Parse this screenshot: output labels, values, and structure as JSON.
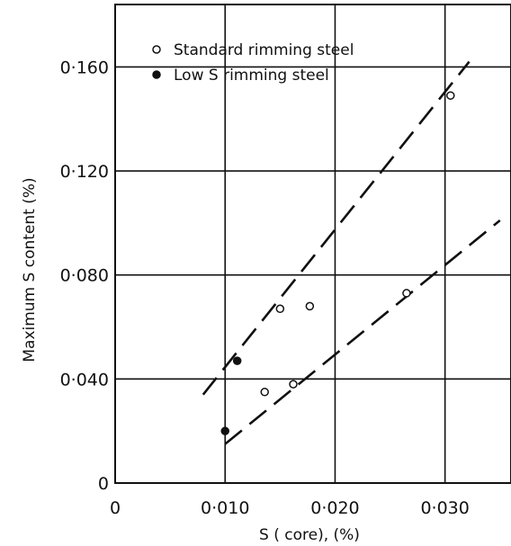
{
  "chart_data": {
    "type": "scatter",
    "title": "",
    "xlabel": "S ( core), (%)",
    "ylabel": "Maximum  S  content   (%)",
    "xlim": [
      0,
      0.036
    ],
    "ylim": [
      0,
      0.184
    ],
    "x_ticks": [
      {
        "value": 0,
        "label": "0"
      },
      {
        "value": 0.01,
        "label": "0·010"
      },
      {
        "value": 0.02,
        "label": "0·020"
      },
      {
        "value": 0.03,
        "label": "0·030"
      }
    ],
    "y_ticks": [
      {
        "value": 0,
        "label": "0"
      },
      {
        "value": 0.04,
        "label": "0·040"
      },
      {
        "value": 0.08,
        "label": "0·080"
      },
      {
        "value": 0.12,
        "label": "0·120"
      },
      {
        "value": 0.16,
        "label": "0·160"
      }
    ],
    "grid": true,
    "legend_position": "top-left",
    "series": [
      {
        "name": "Standard  rimming steel",
        "marker": "open-circle",
        "points": [
          {
            "x": 0.0136,
            "y": 0.035
          },
          {
            "x": 0.015,
            "y": 0.067
          },
          {
            "x": 0.0162,
            "y": 0.038
          },
          {
            "x": 0.0177,
            "y": 0.068
          },
          {
            "x": 0.0265,
            "y": 0.073
          },
          {
            "x": 0.0305,
            "y": 0.149
          }
        ]
      },
      {
        "name": "Low  S  rimming steel",
        "marker": "filled-circle",
        "points": [
          {
            "x": 0.01,
            "y": 0.02
          },
          {
            "x": 0.0111,
            "y": 0.047
          }
        ]
      }
    ],
    "trend_lines": [
      {
        "style": "dashed",
        "from": {
          "x": 0.008,
          "y": 0.034
        },
        "to": {
          "x": 0.0322,
          "y": 0.162
        }
      },
      {
        "style": "dashed",
        "from": {
          "x": 0.01,
          "y": 0.015
        },
        "to": {
          "x": 0.035,
          "y": 0.101
        }
      }
    ]
  }
}
